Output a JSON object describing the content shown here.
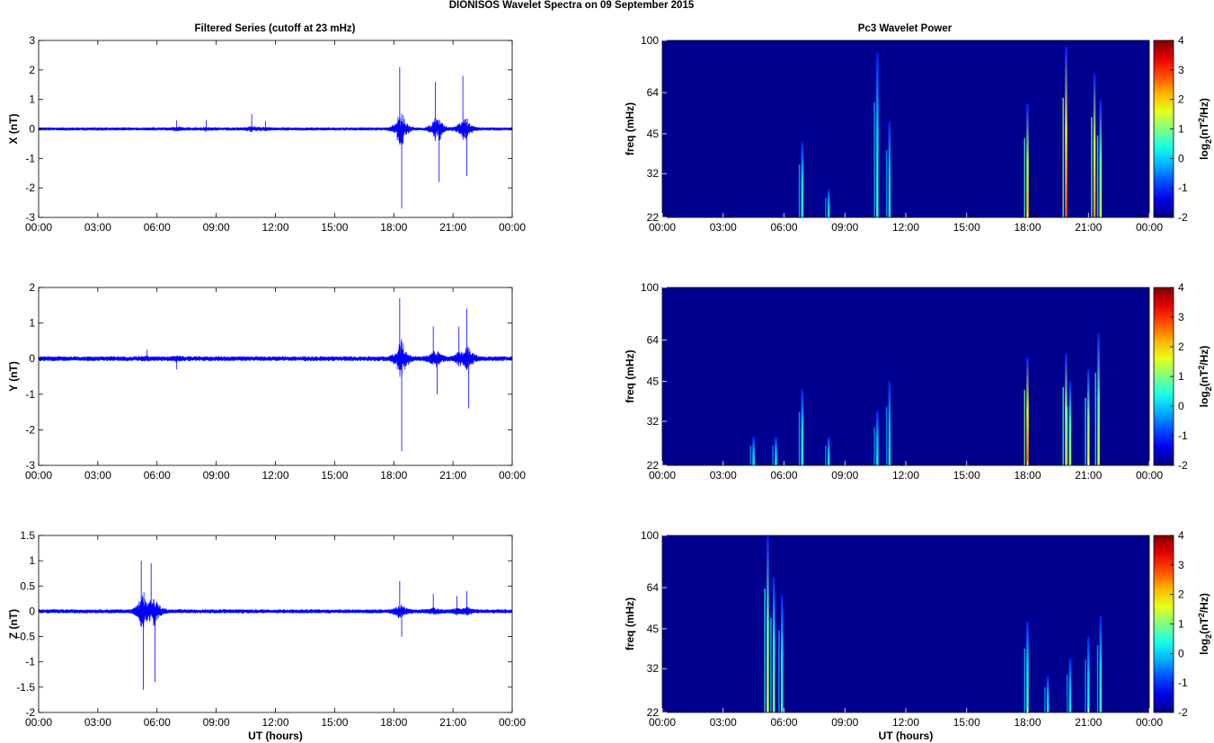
{
  "suptitle": "DIONISOS Wavelet Spectra on 09 September 2015",
  "left_column_title": "Filtered Series (cutoff at 23 mHz)",
  "right_column_title": "Pc3 Wavelet Power",
  "x_tick_labels": [
    "00:00",
    "03:00",
    "06:00",
    "09:00",
    "12:00",
    "15:00",
    "18:00",
    "21:00",
    "00:00"
  ],
  "x_label": "UT (hours)",
  "freq_label": "freq (mHz)",
  "freq_tick_labels": [
    "22",
    "32",
    "45",
    "64",
    "100"
  ],
  "colorbar_label_base": "log",
  "colorbar_label_sub": "2",
  "colorbar_label_mid": "(nT",
  "colorbar_label_sup": "2",
  "colorbar_label_end": "/Hz)",
  "colors": {
    "trace": "#0000ff",
    "spectrogram_background": "#00008f"
  },
  "chart_data": [
    {
      "type": "line",
      "component": "X",
      "ylabel": "X (nT)",
      "ylim": [
        -3,
        3
      ],
      "yticks": [
        -3,
        -2,
        -1,
        0,
        1,
        2,
        3
      ],
      "xlim_hours": [
        0,
        24
      ],
      "baseline_noise_nT": 0.04,
      "bursts": [
        {
          "t": 7.0,
          "amp": 0.3
        },
        {
          "t": 8.5,
          "amp": 0.3
        },
        {
          "t": 10.8,
          "amp": 0.5
        },
        {
          "t": 11.5,
          "amp": 0.25
        },
        {
          "t": 18.3,
          "amp": 2.1
        },
        {
          "t": 18.4,
          "amp": -2.7
        },
        {
          "t": 20.1,
          "amp": 1.6
        },
        {
          "t": 20.3,
          "amp": -1.8
        },
        {
          "t": 21.5,
          "amp": 1.8
        },
        {
          "t": 21.7,
          "amp": -1.6
        }
      ]
    },
    {
      "type": "line",
      "component": "Y",
      "ylabel": "Y (nT)",
      "ylim": [
        -3,
        2
      ],
      "yticks": [
        -3,
        -2,
        -1,
        0,
        1,
        2
      ],
      "xlim_hours": [
        0,
        24
      ],
      "baseline_noise_nT": 0.05,
      "bursts": [
        {
          "t": 5.5,
          "amp": 0.25
        },
        {
          "t": 7.0,
          "amp": -0.3
        },
        {
          "t": 18.3,
          "amp": 1.7
        },
        {
          "t": 18.4,
          "amp": -2.6
        },
        {
          "t": 20.0,
          "amp": 0.9
        },
        {
          "t": 20.2,
          "amp": -1.0
        },
        {
          "t": 21.3,
          "amp": 0.9
        },
        {
          "t": 21.7,
          "amp": 1.4
        },
        {
          "t": 21.8,
          "amp": -1.4
        }
      ]
    },
    {
      "type": "line",
      "component": "Z",
      "ylabel": "Z (nT)",
      "ylim": [
        -2,
        1.5
      ],
      "yticks": [
        -2,
        -1.5,
        -1,
        -0.5,
        0,
        0.5,
        1,
        1.5
      ],
      "xlim_hours": [
        0,
        24
      ],
      "baseline_noise_nT": 0.03,
      "bursts": [
        {
          "t": 5.2,
          "amp": 1.0
        },
        {
          "t": 5.3,
          "amp": -1.55
        },
        {
          "t": 5.7,
          "amp": 0.95
        },
        {
          "t": 5.9,
          "amp": -1.4
        },
        {
          "t": 18.3,
          "amp": 0.6
        },
        {
          "t": 18.4,
          "amp": -0.5
        },
        {
          "t": 20.0,
          "amp": 0.35
        },
        {
          "t": 21.2,
          "amp": 0.3
        },
        {
          "t": 21.7,
          "amp": 0.4
        }
      ]
    },
    {
      "type": "heatmap",
      "component": "X",
      "title": "Pc3 Wavelet Power",
      "ylabel": "freq (mHz)",
      "ylim_mHz": [
        22,
        100
      ],
      "y_scale": "log",
      "xlim_hours": [
        0,
        24
      ],
      "colorbar_range": [
        -2,
        4
      ],
      "colorbar_ticks": [
        -2,
        -1,
        0,
        1,
        2,
        3,
        4
      ],
      "colormap": "jet",
      "events": [
        {
          "t": 6.9,
          "fmax": 42,
          "peak": 0.5
        },
        {
          "t": 8.2,
          "fmax": 28,
          "peak": 0.2
        },
        {
          "t": 10.6,
          "fmax": 90,
          "peak": 0.5
        },
        {
          "t": 11.2,
          "fmax": 50,
          "peak": 0.3
        },
        {
          "t": 18.0,
          "fmax": 58,
          "peak": 2.2
        },
        {
          "t": 19.9,
          "fmax": 95,
          "peak": 3.0
        },
        {
          "t": 21.3,
          "fmax": 75,
          "peak": 2.6
        },
        {
          "t": 21.6,
          "fmax": 60,
          "peak": 1.5
        }
      ]
    },
    {
      "type": "heatmap",
      "component": "Y",
      "ylabel": "freq (mHz)",
      "ylim_mHz": [
        22,
        100
      ],
      "y_scale": "log",
      "xlim_hours": [
        0,
        24
      ],
      "colorbar_range": [
        -2,
        4
      ],
      "colorbar_ticks": [
        -2,
        -1,
        0,
        1,
        2,
        3,
        4
      ],
      "colormap": "jet",
      "events": [
        {
          "t": 4.5,
          "fmax": 28,
          "peak": 0.2
        },
        {
          "t": 5.6,
          "fmax": 28,
          "peak": 0.2
        },
        {
          "t": 6.9,
          "fmax": 42,
          "peak": 0.5
        },
        {
          "t": 8.2,
          "fmax": 28,
          "peak": 0.2
        },
        {
          "t": 10.6,
          "fmax": 35,
          "peak": 0.2
        },
        {
          "t": 11.2,
          "fmax": 45,
          "peak": 0.2
        },
        {
          "t": 18.0,
          "fmax": 55,
          "peak": 2.8
        },
        {
          "t": 19.9,
          "fmax": 57,
          "peak": 2.2
        },
        {
          "t": 20.1,
          "fmax": 45,
          "peak": 1.4
        },
        {
          "t": 21.0,
          "fmax": 50,
          "peak": 1.8
        },
        {
          "t": 21.5,
          "fmax": 68,
          "peak": 1.6
        }
      ]
    },
    {
      "type": "heatmap",
      "component": "Z",
      "ylabel": "freq (mHz)",
      "ylim_mHz": [
        22,
        100
      ],
      "y_scale": "log",
      "xlim_hours": [
        0,
        24
      ],
      "xlabel": "UT (hours)",
      "colorbar_range": [
        -2,
        4
      ],
      "colorbar_ticks": [
        -2,
        -1,
        0,
        1,
        2,
        3,
        4
      ],
      "colormap": "jet",
      "events": [
        {
          "t": 5.2,
          "fmax": 100,
          "peak": 1.6
        },
        {
          "t": 5.5,
          "fmax": 70,
          "peak": 1.0
        },
        {
          "t": 5.9,
          "fmax": 60,
          "peak": 0.6
        },
        {
          "t": 18.0,
          "fmax": 48,
          "peak": 0.6
        },
        {
          "t": 19.0,
          "fmax": 30,
          "peak": 0.2
        },
        {
          "t": 20.1,
          "fmax": 35,
          "peak": 0.2
        },
        {
          "t": 21.0,
          "fmax": 42,
          "peak": 0.3
        },
        {
          "t": 21.6,
          "fmax": 50,
          "peak": 0.5
        }
      ]
    }
  ]
}
